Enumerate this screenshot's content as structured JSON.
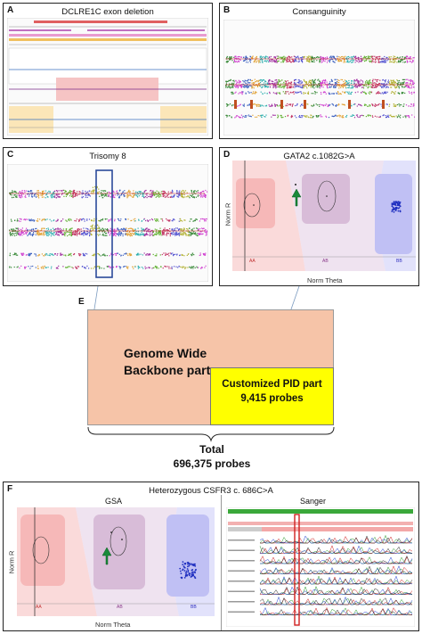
{
  "panels": {
    "A": {
      "label": "A",
      "title": "DCLRE1C exon deletion"
    },
    "B": {
      "label": "B",
      "title": "Consanguinity"
    },
    "C": {
      "label": "C",
      "title": "Trisomy 8"
    },
    "D": {
      "label": "D",
      "title": "GATA2 c.1082G>A",
      "y_axis": "Norm R",
      "x_axis": "Norm Theta",
      "clusters": [
        "AA",
        "AB",
        "BB"
      ]
    },
    "E": {
      "label": "E",
      "backbone_line1": "Genome Wide",
      "backbone_line2": "Backbone part",
      "custom_line1": "Customized PID part",
      "custom_line2": "9,415 probes",
      "total_line1": "Total",
      "total_line2": "696,375 probes"
    },
    "F": {
      "label": "F",
      "title": "Heterozygous CSFR3 c. 686C>A",
      "gsa_label": "GSA",
      "sanger_label": "Sanger",
      "y_axis": "Norm R",
      "x_axis": "Norm Theta",
      "clusters": [
        "AA",
        "AB",
        "BB"
      ]
    }
  },
  "colors": {
    "backbone": "#f6c4a8",
    "custom": "#ffff00",
    "arrow": "#1a8a3a",
    "highlight": "#3a5fa0"
  }
}
